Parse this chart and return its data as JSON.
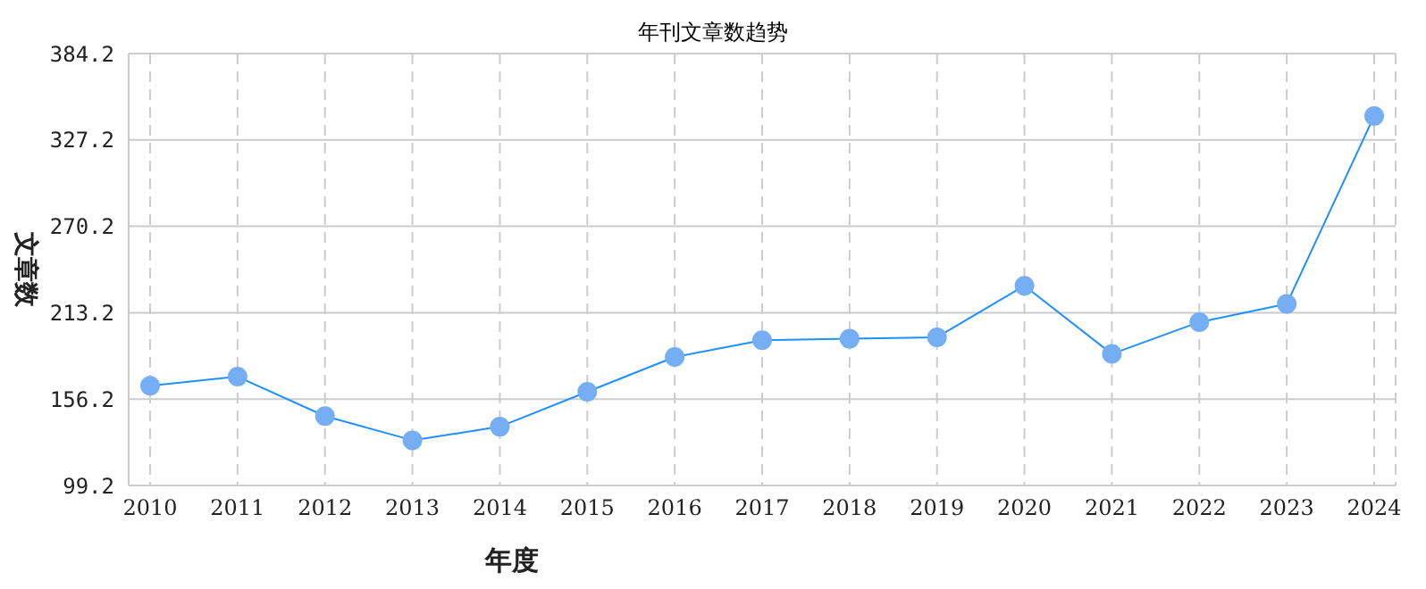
{
  "chart_data": {
    "type": "line",
    "title": "年刊文章数趋势",
    "xlabel": "年度",
    "ylabel": "文章数",
    "categories": [
      "2010",
      "2011",
      "2012",
      "2013",
      "2014",
      "2015",
      "2016",
      "2017",
      "2018",
      "2019",
      "2020",
      "2021",
      "2022",
      "2023",
      "2024"
    ],
    "series": [
      {
        "color": "#1e90ff",
        "values": [
          165,
          171,
          145,
          129,
          138,
          161,
          184,
          195,
          196,
          197,
          231,
          186,
          207,
          219,
          343
        ]
      }
    ],
    "ylim": [
      99.2,
      384.2
    ],
    "yticks": [
      {
        "value": 99.2,
        "label": "99.2"
      },
      {
        "value": 156.2,
        "label": "156.2"
      },
      {
        "value": 213.2,
        "label": "213.2"
      },
      {
        "value": 270.2,
        "label": "270.2"
      },
      {
        "value": 327.2,
        "label": "327.2"
      },
      {
        "value": 384.2,
        "label": "384.2"
      }
    ],
    "grid": true,
    "marker": "circle",
    "line_style": "solid"
  }
}
